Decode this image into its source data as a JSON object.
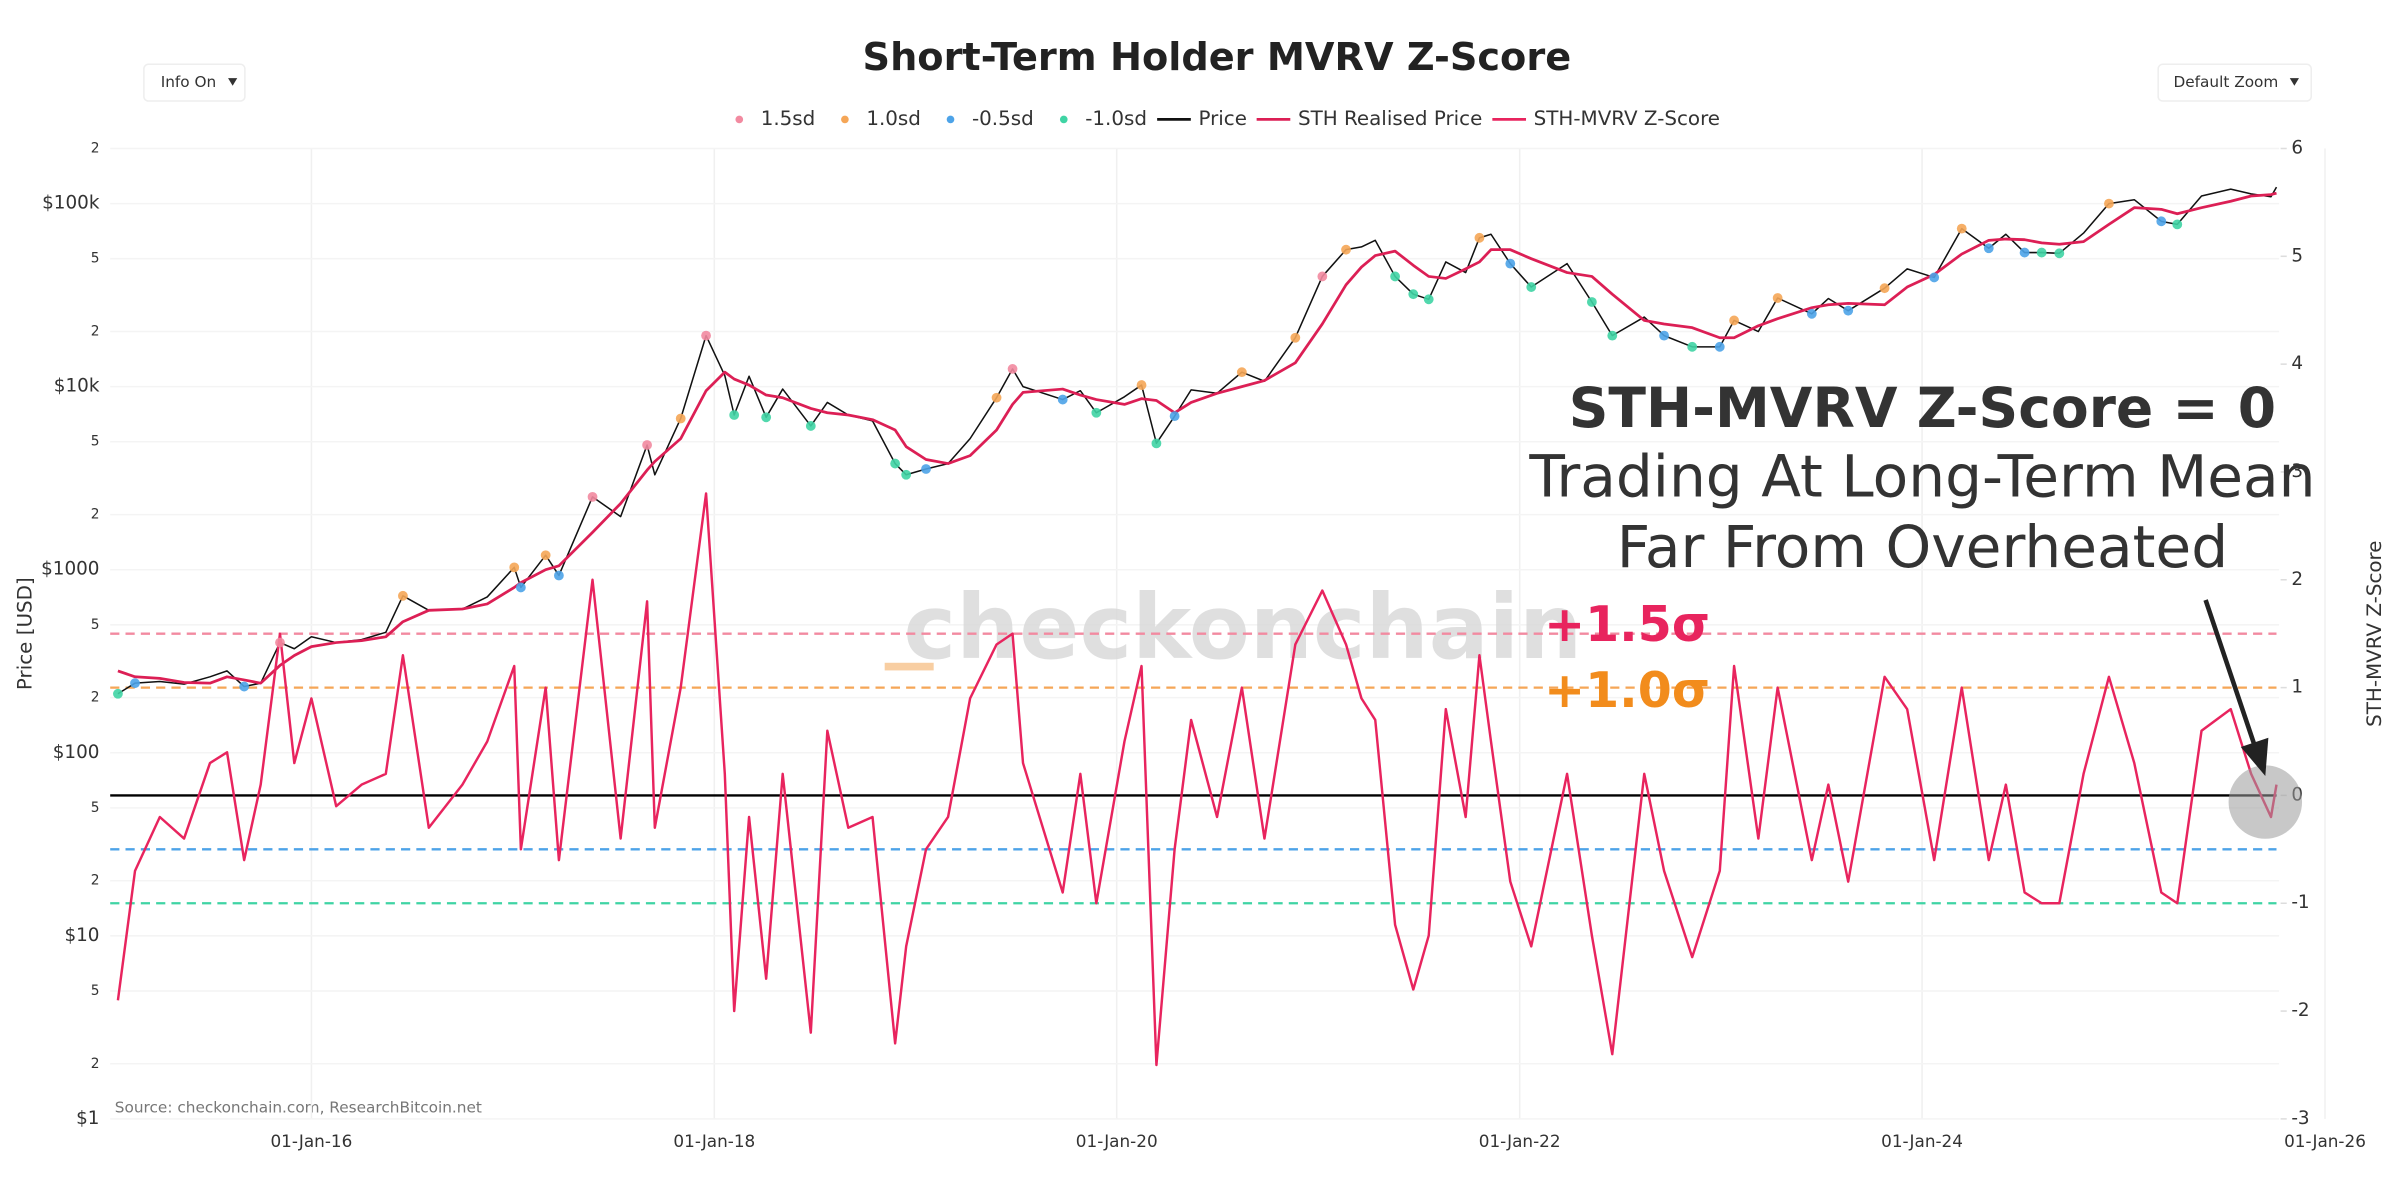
{
  "chart_data": {
    "type": "line",
    "title": "Short-Term Holder MVRV Z-Score",
    "controls": {
      "info": "Info On",
      "zoom": "Default Zoom"
    },
    "ylabel": "Price [USD]",
    "y2label": "STH-MVRV Z-Score",
    "source": "Source: checkonchain.com, ResearchBitcoin.net",
    "watermark": "checkonchain",
    "y_log": true,
    "grid": true,
    "xlim": [
      "2015-01-01",
      "2026-01-01"
    ],
    "xticks": [
      {
        "value": "2016-01-01",
        "label": "01-Jan-16"
      },
      {
        "value": "2018-01-01",
        "label": "01-Jan-18"
      },
      {
        "value": "2020-01-01",
        "label": "01-Jan-20"
      },
      {
        "value": "2022-01-01",
        "label": "01-Jan-22"
      },
      {
        "value": "2024-01-01",
        "label": "01-Jan-24"
      },
      {
        "value": "2026-01-01",
        "label": "01-Jan-26"
      }
    ],
    "ylim": [
      1,
      200000
    ],
    "yticks": [
      {
        "value": 1,
        "label": "$1"
      },
      2,
      5,
      {
        "value": 10,
        "label": "$10"
      },
      {
        "value": 20,
        "label": "2"
      },
      {
        "value": 50,
        "label": "5"
      },
      {
        "value": 100,
        "label": "$100"
      },
      {
        "value": 200,
        "label": "2"
      },
      {
        "value": 500,
        "label": "5"
      },
      {
        "value": 1000,
        "label": "$1000"
      },
      {
        "value": 2000,
        "label": "2"
      },
      {
        "value": 5000,
        "label": "5"
      },
      {
        "value": 10000,
        "label": "$10k"
      },
      {
        "value": 20000,
        "label": "2"
      },
      {
        "value": 50000,
        "label": "5"
      },
      {
        "value": 100000,
        "label": "$100k"
      },
      {
        "value": 200000,
        "label": "2"
      }
    ],
    "y2lim": [
      -3,
      6
    ],
    "y2ticks": [
      -3,
      -2,
      -1,
      0,
      1,
      2,
      3,
      4,
      5,
      6
    ],
    "reference_line": {
      "value": 0,
      "color": "#000000"
    },
    "bands": [
      {
        "name": "1.5sd",
        "value": 1.5,
        "color": "#f28aa0"
      },
      {
        "name": "1.0sd",
        "value": 1.0,
        "color": "#f5a657"
      },
      {
        "name": "-0.5sd",
        "value": -0.5,
        "color": "#4da3e8"
      },
      {
        "name": "-1.0sd",
        "value": -1.0,
        "color": "#3fd4a4"
      }
    ],
    "x": [
      "2015-01-15",
      "2015-02-15",
      "2015-04-01",
      "2015-05-15",
      "2015-07-01",
      "2015-08-01",
      "2015-09-01",
      "2015-10-01",
      "2015-11-05",
      "2015-12-01",
      "2016-01-01",
      "2016-02-15",
      "2016-04-01",
      "2016-05-15",
      "2016-06-15",
      "2016-08-01",
      "2016-10-01",
      "2016-11-15",
      "2017-01-03",
      "2017-01-15",
      "2017-03-01",
      "2017-03-25",
      "2017-05-25",
      "2017-07-15",
      "2017-09-01",
      "2017-09-15",
      "2017-11-01",
      "2017-12-17",
      "2018-01-20",
      "2018-02-06",
      "2018-03-05",
      "2018-04-05",
      "2018-05-05",
      "2018-06-25",
      "2018-07-25",
      "2018-09-01",
      "2018-10-15",
      "2018-11-25",
      "2018-12-15",
      "2019-01-20",
      "2019-03-01",
      "2019-04-10",
      "2019-05-28",
      "2019-06-26",
      "2019-07-15",
      "2019-09-25",
      "2019-10-27",
      "2019-11-25",
      "2020-01-15",
      "2020-02-15",
      "2020-03-13",
      "2020-04-15",
      "2020-05-15",
      "2020-07-01",
      "2020-08-15",
      "2020-09-25",
      "2020-11-20",
      "2021-01-08",
      "2021-02-20",
      "2021-03-20",
      "2021-04-14",
      "2021-05-20",
      "2021-06-22",
      "2021-07-20",
      "2021-08-20",
      "2021-09-25",
      "2021-10-20",
      "2021-11-10",
      "2021-12-15",
      "2022-01-22",
      "2022-03-28",
      "2022-05-12",
      "2022-06-18",
      "2022-08-15",
      "2022-09-20",
      "2022-11-10",
      "2022-12-30",
      "2023-01-25",
      "2023-03-10",
      "2023-04-14",
      "2023-06-15",
      "2023-07-15",
      "2023-08-20",
      "2023-10-25",
      "2023-12-05",
      "2024-01-23",
      "2024-03-13",
      "2024-05-01",
      "2024-06-01",
      "2024-07-05",
      "2024-08-05",
      "2024-09-06",
      "2024-10-20",
      "2024-12-05",
      "2025-01-20",
      "2025-03-10",
      "2025-04-08",
      "2025-05-22",
      "2025-07-14",
      "2025-08-20",
      "2025-09-25",
      "2025-10-05"
    ],
    "series": [
      {
        "name": "Price",
        "color": "#111111",
        "values": [
          210,
          240,
          245,
          237,
          260,
          280,
          230,
          240,
          400,
          370,
          430,
          400,
          415,
          455,
          720,
          600,
          610,
          710,
          1030,
          800,
          1200,
          930,
          2500,
          1950,
          4800,
          3300,
          6700,
          19000,
          11500,
          7000,
          11400,
          6800,
          9700,
          6100,
          8200,
          7000,
          6500,
          3800,
          3300,
          3550,
          3800,
          5200,
          8700,
          12500,
          10000,
          8500,
          9500,
          7200,
          8800,
          10200,
          4900,
          6900,
          9600,
          9200,
          12000,
          10700,
          18500,
          40000,
          56000,
          58000,
          63000,
          40000,
          32000,
          30000,
          48000,
          42000,
          65000,
          68000,
          47000,
          35000,
          47000,
          29000,
          19000,
          24000,
          19000,
          16500,
          16500,
          23000,
          20000,
          30500,
          25000,
          30300,
          26000,
          34500,
          44000,
          39500,
          73000,
          57000,
          68000,
          54000,
          54000,
          53500,
          69000,
          100000,
          105000,
          80000,
          77000,
          110000,
          120000,
          113000,
          109000,
          123000
        ]
      },
      {
        "name": "STH Realised Price",
        "color": "#dc1f55",
        "values": [
          280,
          260,
          255,
          242,
          240,
          260,
          250,
          240,
          300,
          340,
          380,
          400,
          410,
          430,
          520,
          600,
          610,
          650,
          800,
          850,
          1000,
          1050,
          1600,
          2300,
          3500,
          3900,
          5200,
          9500,
          12000,
          11000,
          10200,
          9000,
          8700,
          7600,
          7200,
          7000,
          6600,
          5800,
          4700,
          4000,
          3800,
          4200,
          5800,
          8000,
          9300,
          9700,
          9000,
          8500,
          8000,
          8600,
          8400,
          7200,
          8200,
          9200,
          10000,
          10800,
          13500,
          22000,
          36000,
          45000,
          52000,
          55000,
          46000,
          40000,
          39000,
          44000,
          48000,
          56000,
          56000,
          50000,
          42000,
          40000,
          32000,
          23000,
          22000,
          21000,
          18500,
          18500,
          21500,
          23500,
          27000,
          28000,
          28500,
          28000,
          35000,
          41000,
          53000,
          63000,
          64000,
          63500,
          61000,
          60000,
          62000,
          77000,
          95000,
          93000,
          88000,
          95000,
          103000,
          110000,
          112000,
          114000
        ]
      },
      {
        "name": "STH-MVRV Z-Score",
        "color": "#e8245e",
        "axis": "y2",
        "values": [
          -1.9,
          -0.7,
          -0.2,
          -0.4,
          0.3,
          0.4,
          -0.6,
          0.1,
          1.5,
          0.3,
          0.9,
          -0.1,
          0.1,
          0.2,
          1.3,
          -0.3,
          0.1,
          0.5,
          1.2,
          -0.5,
          1.0,
          -0.6,
          2.0,
          -0.4,
          1.8,
          -0.3,
          1.0,
          2.8,
          0.2,
          -2.0,
          -0.2,
          -1.7,
          0.2,
          -2.2,
          0.6,
          -0.3,
          -0.2,
          -2.3,
          -1.4,
          -0.5,
          -0.2,
          0.9,
          1.4,
          1.5,
          0.3,
          -0.9,
          0.2,
          -1.0,
          0.5,
          1.2,
          -2.5,
          -0.5,
          0.7,
          -0.2,
          1.0,
          -0.4,
          1.4,
          1.9,
          1.4,
          0.9,
          0.7,
          -1.2,
          -1.8,
          -1.3,
          0.8,
          -0.2,
          1.3,
          0.5,
          -0.8,
          -1.4,
          0.2,
          -1.3,
          -2.4,
          0.2,
          -0.7,
          -1.5,
          -0.7,
          1.2,
          -0.4,
          1.0,
          -0.6,
          0.1,
          -0.8,
          1.1,
          0.8,
          -0.6,
          1.0,
          -0.6,
          0.1,
          -0.9,
          -1.0,
          -1.0,
          0.2,
          1.1,
          0.3,
          -0.9,
          -1.0,
          0.6,
          0.8,
          0.2,
          -0.2,
          0.1
        ]
      }
    ],
    "annotations": [
      {
        "text": "STH-MVRV Z-Score = 0",
        "color": "#333333"
      },
      {
        "text": "Trading At Long-Term Mean",
        "color": "#333333"
      },
      {
        "text": "Far From Overheated",
        "color": "#333333"
      },
      {
        "text": "+1.5σ",
        "color": "#e8245e"
      },
      {
        "text": "+1.0σ",
        "color": "#f28c1c"
      }
    ]
  }
}
